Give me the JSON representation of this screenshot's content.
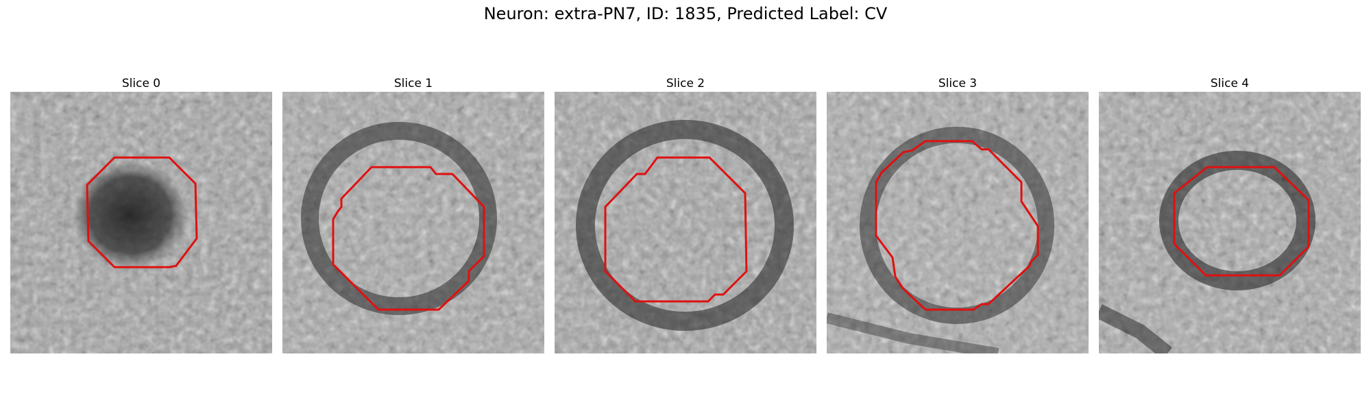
{
  "title": "Neuron: extra-PN7, ID: 1835, Predicted Label: CV",
  "outline_color": "#e01010",
  "slices": [
    {
      "label": "Slice 0",
      "ring": "dark blob (filled)"
    },
    {
      "label": "Slice 1",
      "ring": "large dark ring"
    },
    {
      "label": "Slice 2",
      "ring": "large dark ring"
    },
    {
      "label": "Slice 3",
      "ring": "large dark ring"
    },
    {
      "label": "Slice 4",
      "ring": "medium dark ring"
    }
  ]
}
